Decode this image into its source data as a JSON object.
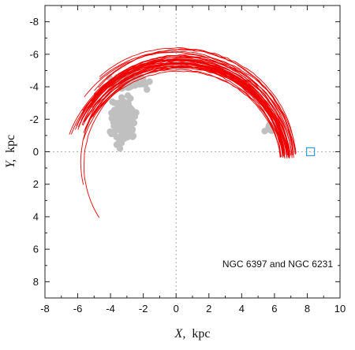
{
  "chart_data": {
    "type": "scatter",
    "xlabel_var": "X,",
    "xlabel_unit": "kpc",
    "ylabel_var": "Y,",
    "ylabel_unit": "kpc",
    "annotation": "NGC 6397 and NGC 6231",
    "xlim": [
      -8,
      10
    ],
    "ylim": [
      -9,
      9
    ],
    "y_inverted": true,
    "x_ticks": [
      "-8",
      "-6",
      "-4",
      "-2",
      "0",
      "2",
      "4",
      "6",
      "8",
      "10"
    ],
    "y_ticks": [
      "-8",
      "-6",
      "-4",
      "-2",
      "0",
      "2",
      "4",
      "6",
      "8"
    ],
    "x_tick_values": [
      -8,
      -6,
      -4,
      -2,
      0,
      2,
      4,
      6,
      8,
      10
    ],
    "y_tick_values": [
      -8,
      -6,
      -4,
      -2,
      0,
      2,
      4,
      6,
      8
    ],
    "grid": false,
    "zero_lines": true,
    "colors": {
      "orbits": "#ee0000",
      "points": "#c0c0c0",
      "sun_marker": "#3aa0e0",
      "zero_line": "#999999",
      "frame": "#222222"
    },
    "sun_marker": {
      "x": 8.2,
      "y": 0.0,
      "shape": "square"
    },
    "orbit_bundle": {
      "description_endpoint": "orbits start near (7.0, 0.4) and arc counter-clockwise to the left",
      "count": 42,
      "center_x": 0.3,
      "center_y_range": [
        0.0,
        1.0
      ],
      "radius_range": [
        6.1,
        6.9
      ],
      "end_points": [
        {
          "x": -6.0,
          "y": -1.5
        },
        {
          "x": -5.8,
          "y": -1.2
        },
        {
          "x": -5.9,
          "y": 2.1
        },
        {
          "x": -4.9,
          "y": 4.2
        },
        {
          "x": -5.5,
          "y": -2.2
        },
        {
          "x": -5.2,
          "y": -2.6
        },
        {
          "x": -4.9,
          "y": -3.1
        },
        {
          "x": -4.6,
          "y": -3.5
        }
      ]
    },
    "clusters": [
      {
        "name": "",
        "center": [
          -3.2,
          -2.0
        ],
        "spread": [
          0.8,
          1.6
        ],
        "count": 130
      },
      {
        "name": "",
        "center": [
          -2.7,
          -4.3
        ],
        "spread": [
          1.4,
          0.7
        ],
        "count": 45
      },
      {
        "name": "",
        "center": [
          5.8,
          -1.4
        ],
        "spread": [
          0.25,
          0.25
        ],
        "count": 12
      }
    ]
  }
}
